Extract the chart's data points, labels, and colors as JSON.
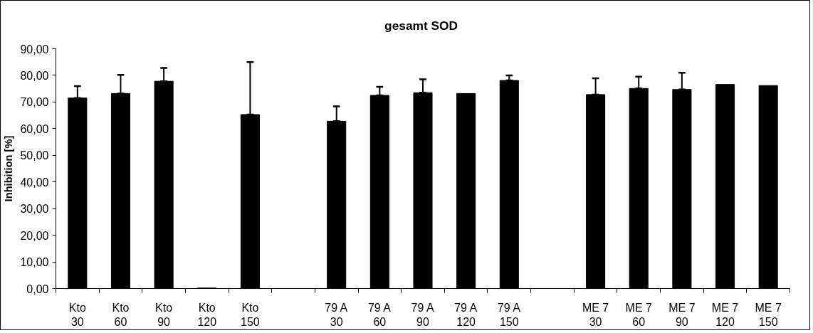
{
  "chart_data": {
    "type": "bar",
    "title": "gesamt  SOD",
    "ylabel": "Inhibition [%]",
    "categories": [
      "Kto\n30",
      "Kto\n60",
      "Kto\n90",
      "Kto\n120",
      "Kto\n150",
      null,
      "79 A\n30",
      "79 A\n60",
      "79 A\n90",
      "79 A\n120",
      "79 A\n150",
      null,
      "ME 7\n30",
      "ME 7\n60",
      "ME 7\n90",
      "ME 7\n120",
      "ME 7\n150"
    ],
    "values": [
      71.5,
      73.2,
      77.8,
      0.2,
      65.3,
      null,
      62.8,
      72.5,
      73.5,
      73.2,
      78.1,
      null,
      72.8,
      75.1,
      74.7,
      76.6,
      76.2
    ],
    "errors": [
      [
        71.5,
        76.0
      ],
      [
        73.2,
        80.2
      ],
      [
        77.8,
        82.8
      ],
      null,
      [
        65.3,
        85.0
      ],
      null,
      [
        62.8,
        68.4
      ],
      [
        72.5,
        75.7
      ],
      [
        73.5,
        78.5
      ],
      null,
      [
        78.1,
        80.0
      ],
      null,
      [
        72.8,
        78.9
      ],
      [
        75.1,
        79.5
      ],
      [
        74.7,
        81.0
      ],
      null,
      null
    ],
    "color": "#000000",
    "ylim": [
      0,
      90
    ],
    "yticks": [
      {
        "value": 0,
        "label": "0,00"
      },
      {
        "value": 10,
        "label": "10,00"
      },
      {
        "value": 20,
        "label": "20,00"
      },
      {
        "value": 30,
        "label": "30,00"
      },
      {
        "value": 40,
        "label": "40,00"
      },
      {
        "value": 50,
        "label": "50,00"
      },
      {
        "value": 60,
        "label": "60,00"
      },
      {
        "value": 70,
        "label": "70,00"
      },
      {
        "value": 80,
        "label": "80,00"
      },
      {
        "value": 90,
        "label": "90,00"
      }
    ],
    "grid": false
  }
}
